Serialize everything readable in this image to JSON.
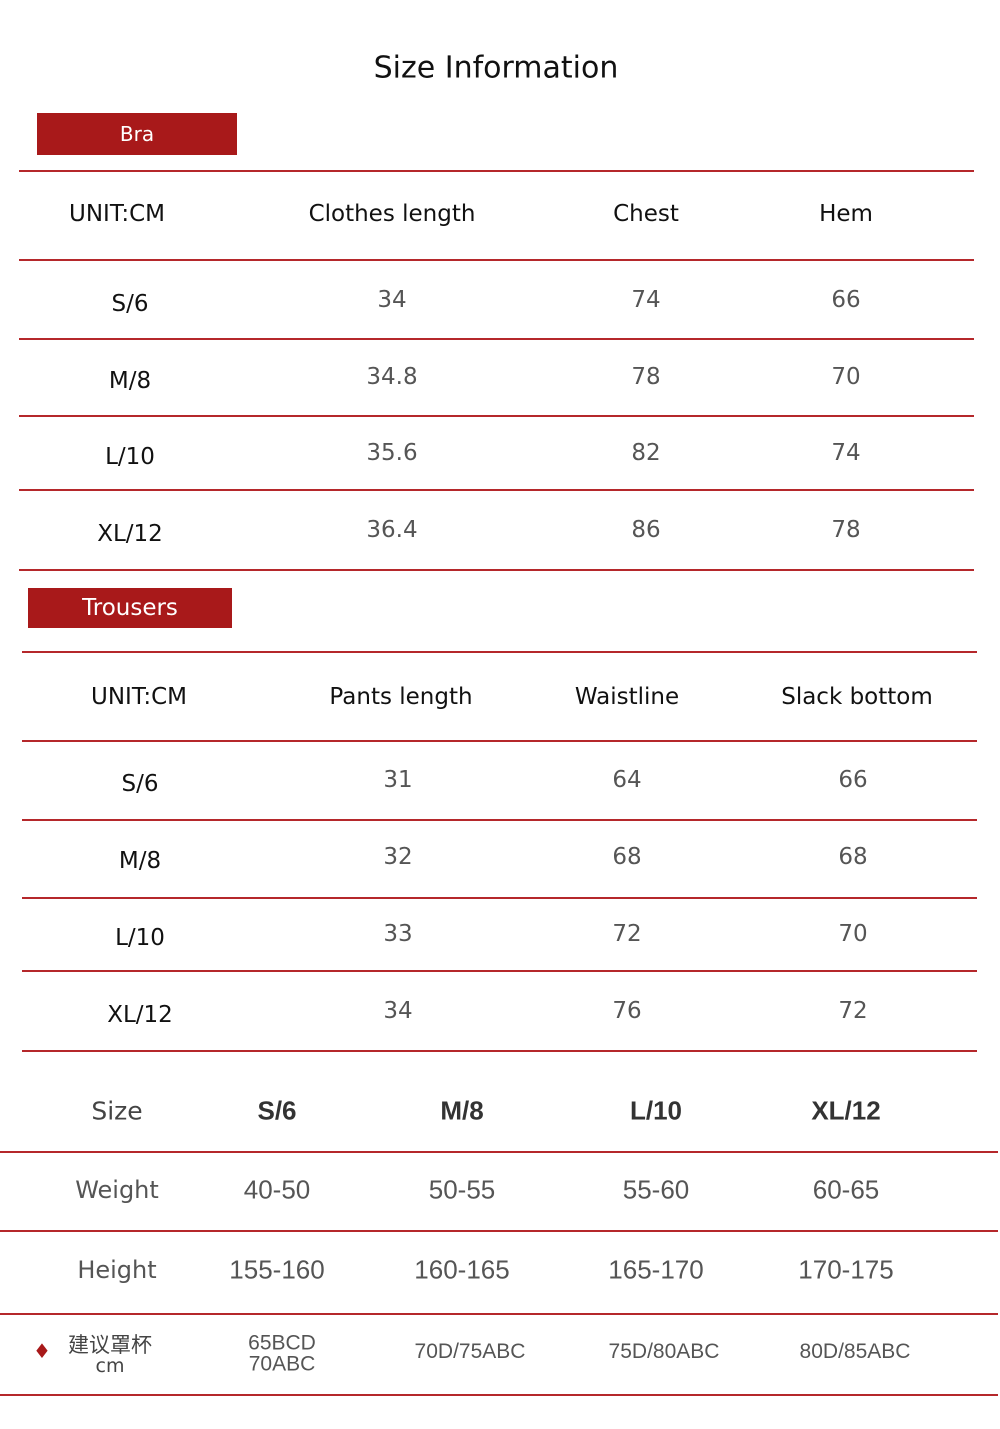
{
  "title": "Size Information",
  "accent_color": "#a8191a",
  "bra": {
    "label": "Bra",
    "headers": [
      "UNIT:CM",
      "Clothes length",
      "Chest",
      "Hem"
    ],
    "rows": [
      [
        "S/6",
        "34",
        "74",
        "66"
      ],
      [
        "M/8",
        "34.8",
        "78",
        "70"
      ],
      [
        "L/10",
        "35.6",
        "82",
        "74"
      ],
      [
        "XL/12",
        "36.4",
        "86",
        "78"
      ]
    ]
  },
  "trousers": {
    "label": "Trousers",
    "headers": [
      "UNIT:CM",
      "Pants length",
      "Waistline",
      "Slack bottom"
    ],
    "rows": [
      [
        "S/6",
        "31",
        "64",
        "66"
      ],
      [
        "M/8",
        "32",
        "68",
        "68"
      ],
      [
        "L/10",
        "33",
        "72",
        "70"
      ],
      [
        "XL/12",
        "34",
        "76",
        "72"
      ]
    ]
  },
  "size_guide": {
    "headers": [
      "Size",
      "S/6",
      "M/8",
      "L/10",
      "XL/12"
    ],
    "rows": [
      [
        "Weight",
        "40-50",
        "50-55",
        "55-60",
        "60-65"
      ],
      [
        "Height",
        "155-160",
        "160-165",
        "165-170",
        "170-175"
      ]
    ],
    "cup_row": {
      "icon": "diamond-icon",
      "label": "建议罩杯",
      "unit": "cm",
      "values": [
        "65BCD",
        "70ABC",
        "70D/75ABC",
        "75D/80ABC",
        "80D/85ABC"
      ]
    }
  }
}
